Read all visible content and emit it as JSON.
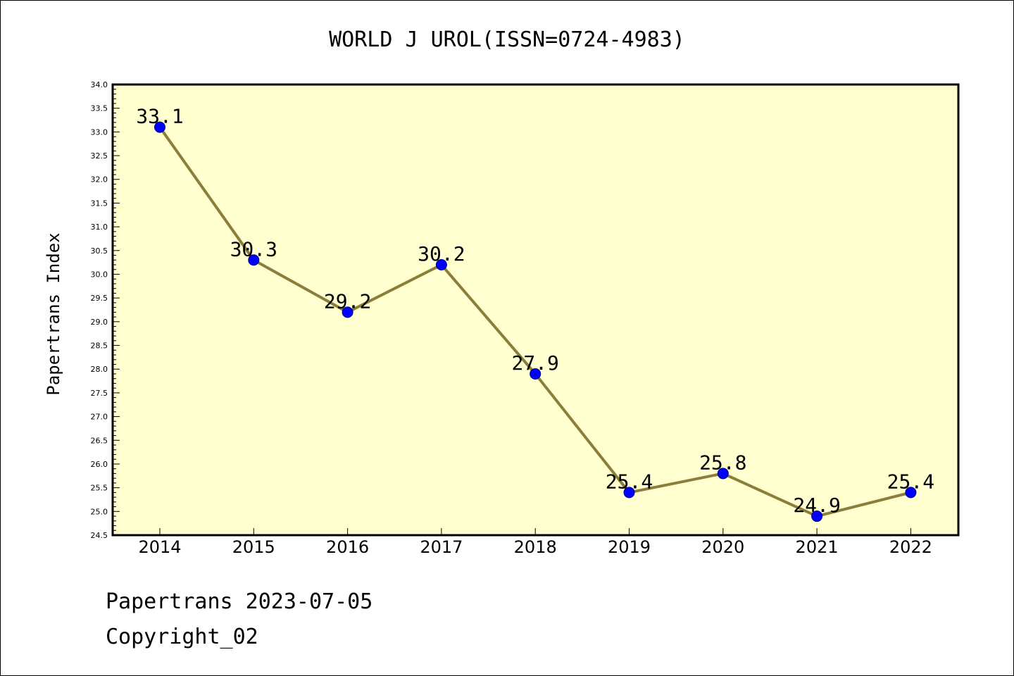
{
  "chart_data": {
    "type": "line",
    "title": "WORLD J UROL(ISSN=0724-4983)",
    "xlabel": "",
    "ylabel": "Papertrans Index",
    "categories": [
      "2014",
      "2015",
      "2016",
      "2017",
      "2018",
      "2019",
      "2020",
      "2021",
      "2022"
    ],
    "values": [
      33.1,
      30.3,
      29.2,
      30.2,
      27.9,
      25.4,
      25.8,
      24.9,
      25.4
    ],
    "data_labels": [
      "33.1",
      "30.3",
      "29.2",
      "30.2",
      "27.9",
      "25.4",
      "25.8",
      "24.9",
      "25.4"
    ],
    "ylim": [
      24.5,
      34.0
    ],
    "yticks": [
      "24.5",
      "25.0",
      "25.5",
      "26.0",
      "26.5",
      "27.0",
      "27.5",
      "28.0",
      "28.5",
      "29.0",
      "29.5",
      "30.0",
      "30.5",
      "31.0",
      "31.5",
      "32.0",
      "32.5",
      "33.0",
      "33.5",
      "34.0"
    ],
    "grid": false,
    "legend": "none",
    "colors": {
      "plot_background": "#ffffd0",
      "line": "#8b7d3a",
      "marker": "#0000ff",
      "marker_edge": "#000080"
    }
  },
  "footer": {
    "line1": "Papertrans 2023-07-05",
    "line2": "Copyright_02"
  }
}
